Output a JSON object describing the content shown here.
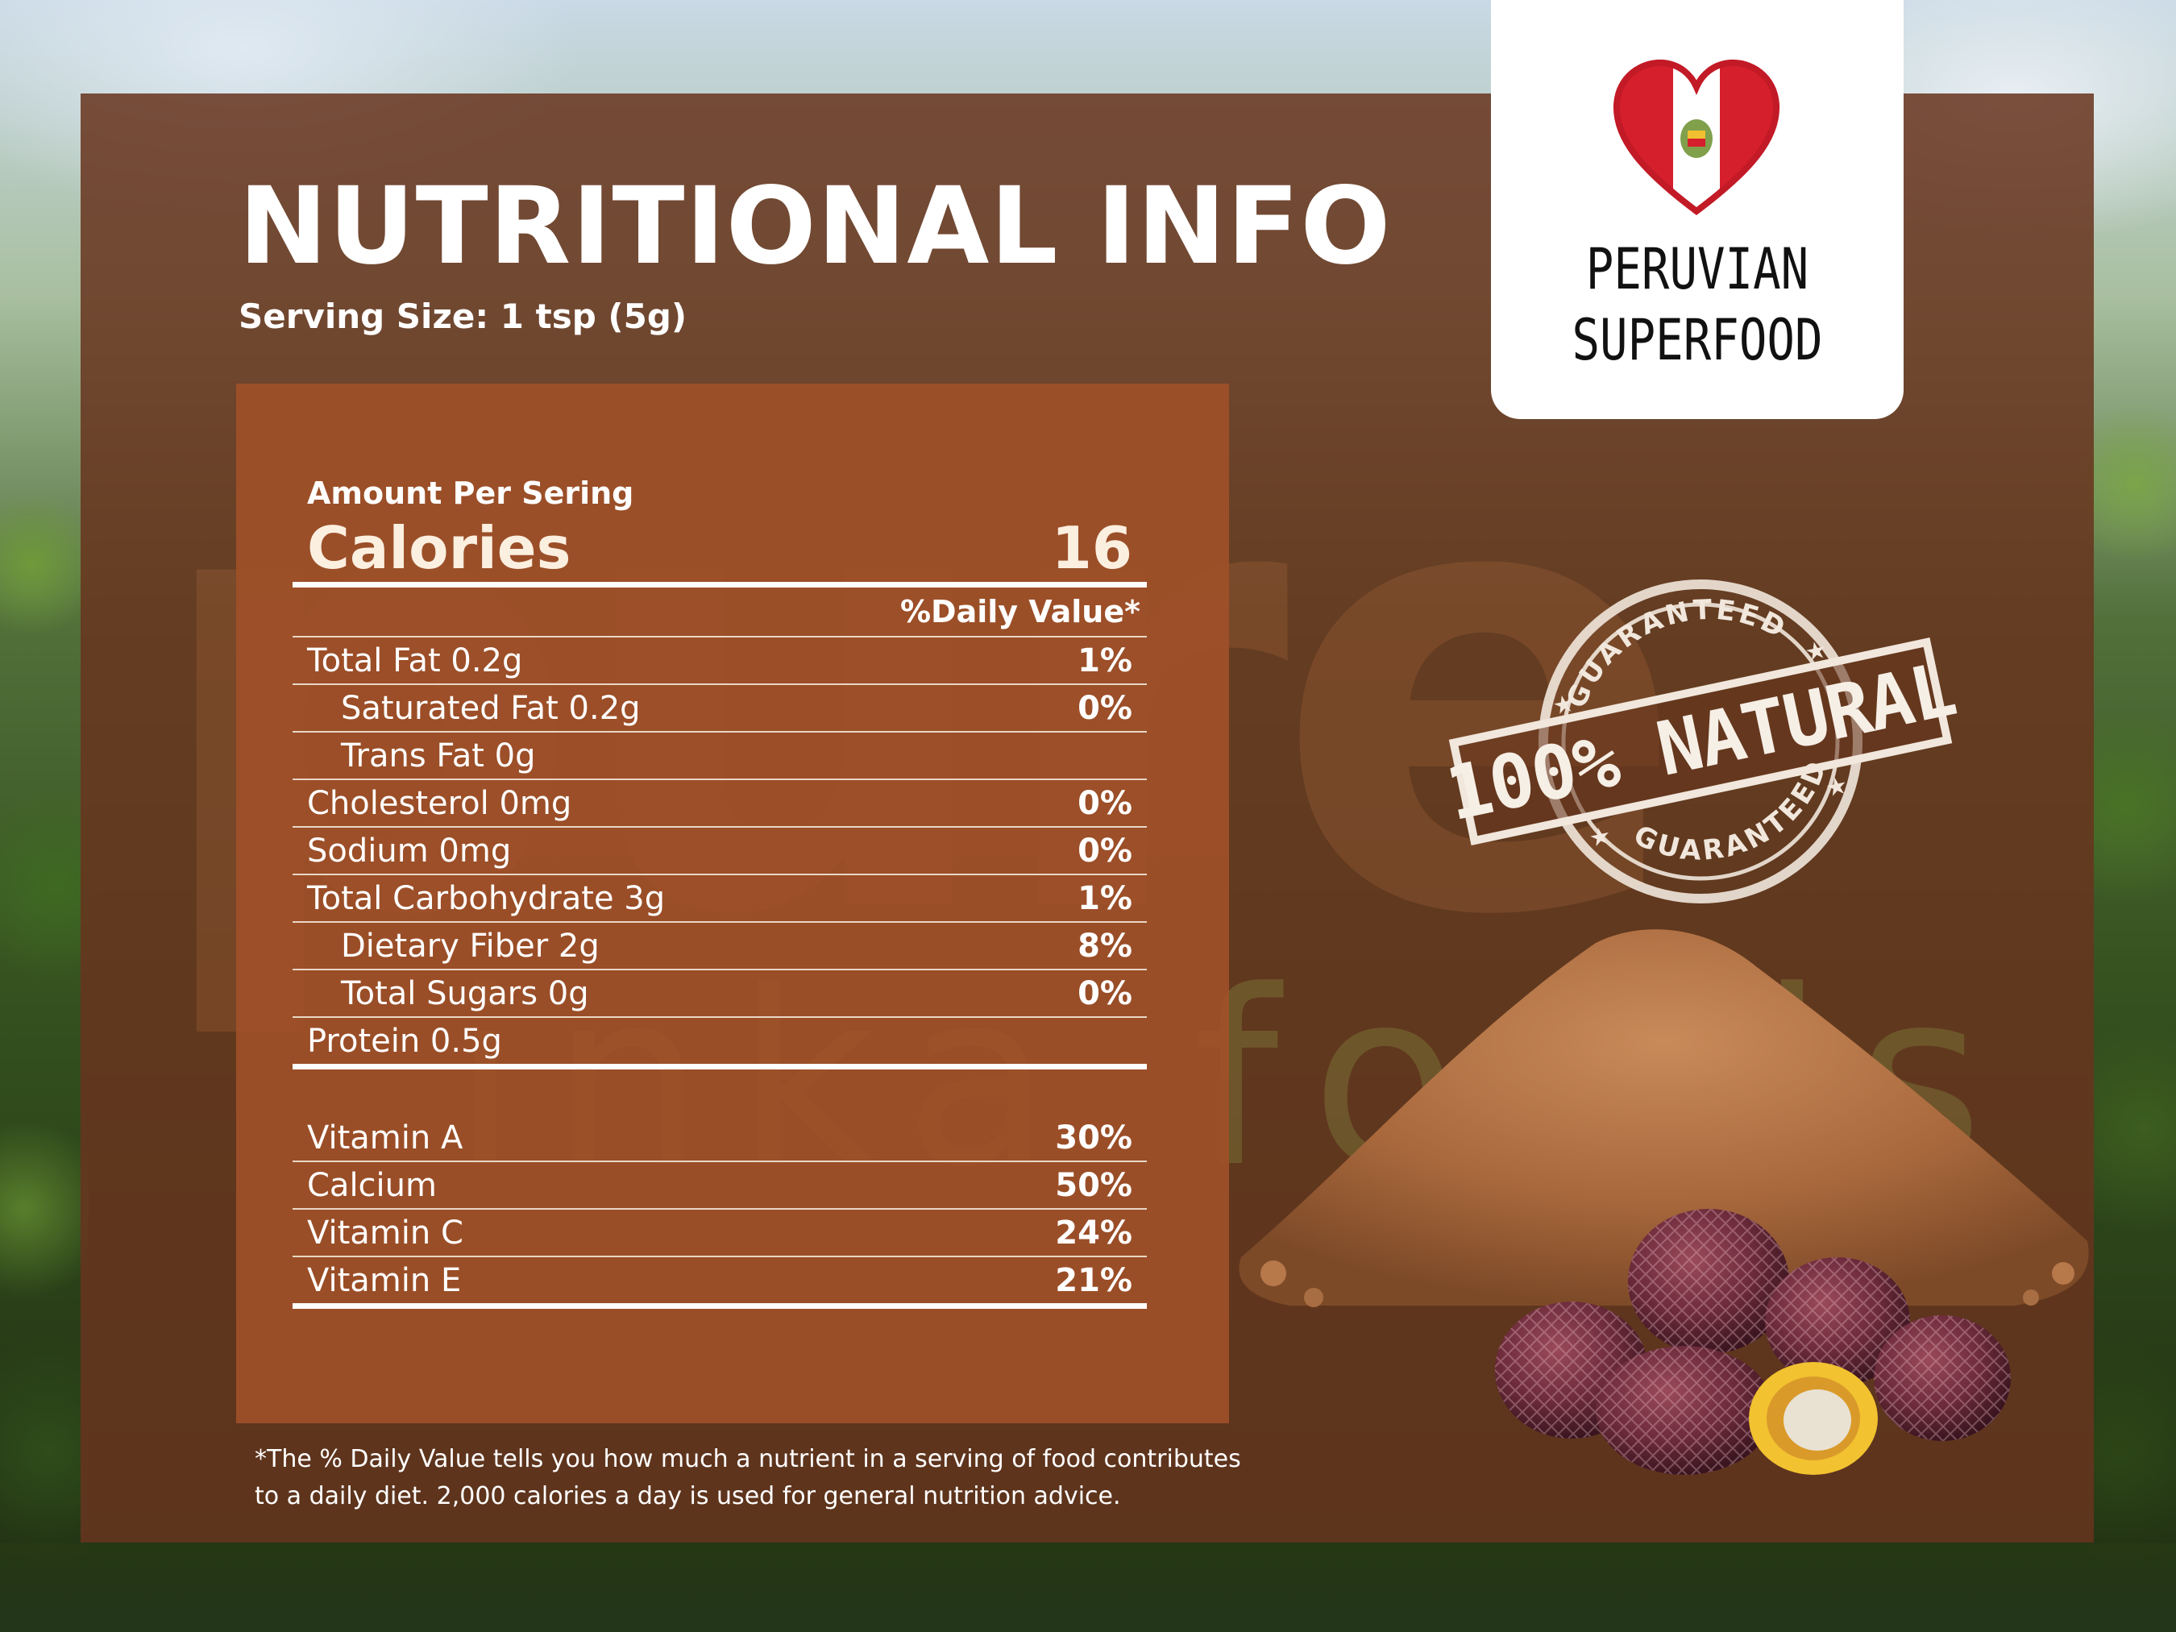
{
  "header": {
    "title": "NUTRITIONAL INFO",
    "serving_size": "Serving Size: 1 tsp (5g)"
  },
  "badge": {
    "line1": "PERUVIAN",
    "line2": "SUPERFOOD",
    "icon": "peru-heart-flag-icon",
    "colors": {
      "red": "#d61f2c",
      "white": "#ffffff"
    }
  },
  "facts": {
    "amount_per": "Amount Per Sering",
    "calories_label": "Calories",
    "calories_value": "16",
    "daily_value_header": "%Daily Value*",
    "rows": [
      {
        "label": "Total Fat 0.2g",
        "pct": "1%"
      },
      {
        "label": "Saturated Fat 0.2g",
        "pct": "0%"
      },
      {
        "label": "Trans Fat 0g",
        "pct": ""
      },
      {
        "label": "Cholesterol 0mg",
        "pct": "0%"
      },
      {
        "label": "Sodium 0mg",
        "pct": "0%"
      },
      {
        "label": "Total Carbohydrate 3g",
        "pct": "1%"
      },
      {
        "label": "Dietary Fiber 2g",
        "pct": "8%"
      },
      {
        "label": "Total Sugars 0g",
        "pct": "0%"
      },
      {
        "label": "Protein 0.5g",
        "pct": ""
      }
    ],
    "vitamins": [
      {
        "label": "Vitamin A",
        "pct": "30%"
      },
      {
        "label": "Calcium",
        "pct": "50%"
      },
      {
        "label": "Vitamin C",
        "pct": "24%"
      },
      {
        "label": "Vitamin E",
        "pct": "21%"
      }
    ]
  },
  "footnote": {
    "line1": "*The % Daily Value tells you how much a nutrient in a serving of food contributes",
    "line2": "to a daily diet. 2,000 calories a day is used for general nutrition advice."
  },
  "stamp": {
    "top_arc": "GUARANTEED",
    "main": "100% NATURAL",
    "bottom_arc": "GUARANTEED"
  },
  "watermark": {
    "main": "pure",
    "sub": "inka foods"
  },
  "colors": {
    "panel": "#68341e",
    "facts_box": "#a05028",
    "text": "#ffffff"
  }
}
